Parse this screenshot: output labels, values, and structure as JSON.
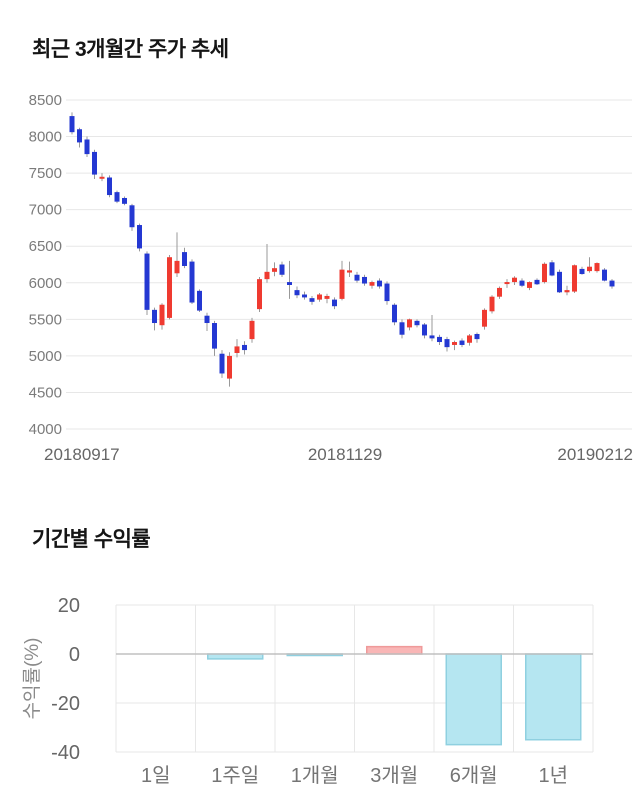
{
  "chart_data": [
    {
      "type": "candlestick",
      "title": "최근 3개월간 주가 추세",
      "x_tick_labels": [
        "20180917",
        "20181129",
        "20190212"
      ],
      "y_ticks": [
        8500,
        8000,
        7500,
        7000,
        6500,
        6000,
        5500,
        5000,
        4500,
        4000
      ],
      "ylim": [
        4000,
        8500
      ],
      "grid": "horizontal",
      "colors": {
        "bull": "#ef3a30",
        "bear": "#2438d2",
        "wick": "#999999",
        "gridline": "#e7e7e7",
        "y_tick_text": "#7b7b7b",
        "x_tick_text": "#666666"
      },
      "candles_ohlc": [
        [
          8280,
          8330,
          8030,
          8060
        ],
        [
          8100,
          8120,
          7850,
          7920
        ],
        [
          7960,
          8000,
          7720,
          7760
        ],
        [
          7790,
          7820,
          7420,
          7480
        ],
        [
          7430,
          7500,
          7390,
          7450
        ],
        [
          7440,
          7470,
          7170,
          7200
        ],
        [
          7240,
          7260,
          7090,
          7110
        ],
        [
          7160,
          7180,
          7060,
          7080
        ],
        [
          7060,
          7080,
          6710,
          6760
        ],
        [
          6790,
          6810,
          6430,
          6470
        ],
        [
          6400,
          6430,
          5560,
          5630
        ],
        [
          5630,
          5660,
          5350,
          5450
        ],
        [
          5420,
          5720,
          5360,
          5700
        ],
        [
          5520,
          6380,
          5500,
          6350
        ],
        [
          6130,
          6690,
          6080,
          6300
        ],
        [
          6420,
          6480,
          6200,
          6230
        ],
        [
          6290,
          6320,
          5710,
          5730
        ],
        [
          5890,
          5910,
          5600,
          5620
        ],
        [
          5550,
          5590,
          5340,
          5450
        ],
        [
          5450,
          5480,
          5000,
          5100
        ],
        [
          5030,
          5080,
          4700,
          4760
        ],
        [
          4690,
          5050,
          4580,
          5000
        ],
        [
          5040,
          5230,
          4980,
          5130
        ],
        [
          5150,
          5200,
          5020,
          5080
        ],
        [
          5230,
          5520,
          5180,
          5480
        ],
        [
          5640,
          6080,
          5600,
          6050
        ],
        [
          6050,
          6530,
          6000,
          6150
        ],
        [
          6150,
          6280,
          6090,
          6200
        ],
        [
          6250,
          6290,
          6080,
          6110
        ],
        [
          6010,
          6300,
          5780,
          5970
        ],
        [
          5900,
          5950,
          5790,
          5830
        ],
        [
          5840,
          5880,
          5770,
          5800
        ],
        [
          5790,
          5820,
          5700,
          5740
        ],
        [
          5770,
          5860,
          5740,
          5840
        ],
        [
          5780,
          5850,
          5720,
          5820
        ],
        [
          5770,
          5800,
          5640,
          5680
        ],
        [
          5780,
          6300,
          5760,
          6180
        ],
        [
          6140,
          6290,
          6080,
          6170
        ],
        [
          6110,
          6150,
          6000,
          6030
        ],
        [
          6080,
          6110,
          5960,
          5990
        ],
        [
          5960,
          6030,
          5920,
          6010
        ],
        [
          6030,
          6060,
          5920,
          5950
        ],
        [
          5990,
          6020,
          5700,
          5750
        ],
        [
          5700,
          5720,
          5420,
          5460
        ],
        [
          5460,
          5500,
          5240,
          5290
        ],
        [
          5390,
          5510,
          5350,
          5500
        ],
        [
          5480,
          5500,
          5390,
          5420
        ],
        [
          5430,
          5450,
          5240,
          5280
        ],
        [
          5280,
          5560,
          5200,
          5240
        ],
        [
          5260,
          5290,
          5150,
          5190
        ],
        [
          5230,
          5260,
          5060,
          5120
        ],
        [
          5150,
          5210,
          5080,
          5190
        ],
        [
          5210,
          5240,
          5120,
          5150
        ],
        [
          5180,
          5300,
          5140,
          5280
        ],
        [
          5300,
          5320,
          5180,
          5230
        ],
        [
          5400,
          5650,
          5360,
          5630
        ],
        [
          5610,
          5830,
          5580,
          5810
        ],
        [
          5810,
          5950,
          5780,
          5930
        ],
        [
          5990,
          6050,
          5930,
          6010
        ],
        [
          6010,
          6090,
          5970,
          6070
        ],
        [
          6030,
          6060,
          5940,
          5960
        ],
        [
          5930,
          6020,
          5900,
          6010
        ],
        [
          6040,
          6060,
          5970,
          5980
        ],
        [
          6010,
          6280,
          5990,
          6260
        ],
        [
          6280,
          6310,
          6090,
          6100
        ],
        [
          6150,
          6180,
          5860,
          5870
        ],
        [
          5870,
          5960,
          5830,
          5900
        ],
        [
          5880,
          6250,
          5860,
          6240
        ],
        [
          6190,
          6220,
          6110,
          6120
        ],
        [
          6160,
          6350,
          6140,
          6220
        ],
        [
          6160,
          6280,
          6140,
          6270
        ],
        [
          6180,
          6200,
          6020,
          6030
        ],
        [
          6030,
          6050,
          5920,
          5950
        ]
      ]
    },
    {
      "type": "bar",
      "title": "기간별 수익률",
      "categories": [
        "1일",
        "1주일",
        "1개월",
        "3개월",
        "6개월",
        "1년"
      ],
      "values": [
        0,
        -2,
        -0.5,
        3,
        -37,
        -35
      ],
      "ylabel": "수익률(%)",
      "y_ticks": [
        20,
        0,
        -20,
        -40
      ],
      "ylim": [
        -45,
        20
      ],
      "grid": "both",
      "colors": {
        "negative_fill": "#b5e6f1",
        "negative_border": "#8fd0e0",
        "positive_fill": "#f9b6b6",
        "positive_border": "#ef9a9a",
        "gridline": "#e7e7e7",
        "zero_line": "#c0c0c0",
        "tick_text": "#666666",
        "category_text": "#757575",
        "axis_label_text": "#8a8a8a"
      }
    }
  ]
}
